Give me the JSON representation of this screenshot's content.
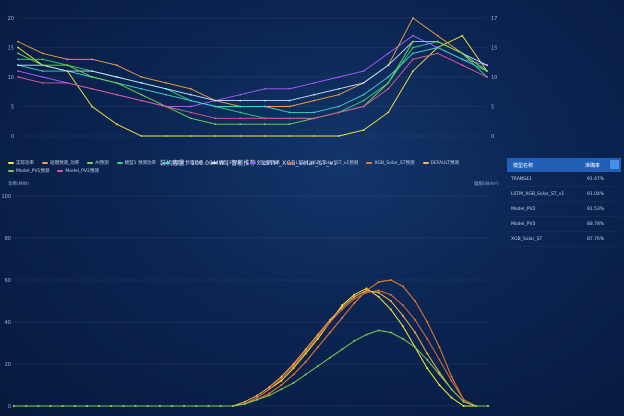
{
  "subtitle": "装机容量：100.00MW  |  智能推荐：LSTM_XGB_Solar_ST_v1",
  "units": {
    "left": "功率(MW)",
    "right": "辐照(W/m²)"
  },
  "legend": [
    {
      "label": "实际功率",
      "color": "#f5e83a"
    },
    {
      "label": "短期预测_功率",
      "color": "#f2a23c"
    },
    {
      "label": "AI预测",
      "color": "#7bd94a"
    },
    {
      "label": "模型1 预测功率",
      "color": "#35d07a"
    },
    {
      "label": "模型2 预测功率",
      "color": "#3bd4c8"
    },
    {
      "label": "模型3 预测",
      "color": "#c3e3ff"
    },
    {
      "label": "超短期功率",
      "color": "#a35cff"
    },
    {
      "label": "LSTM_XGB_Solar_ST_v1预测",
      "color": "#e06a3a"
    },
    {
      "label": "XGB_Solar_ST预测",
      "color": "#ef7b2a"
    },
    {
      "label": "DEFAULT预测",
      "color": "#ffb347"
    },
    {
      "label": "Model_PV1预测",
      "color": "#7ec850"
    },
    {
      "label": "Model_PV2预测",
      "color": "#e05a9a"
    }
  ],
  "panel": {
    "headers": [
      "模型名称",
      "准确率"
    ],
    "rows": [
      {
        "name": "TRANS41",
        "acc": "91.47%"
      },
      {
        "name": "LSTM_XGB_Solar_ST_v1",
        "acc": "91.04%"
      },
      {
        "name": "Model_PV2",
        "acc": "91.53%"
      },
      {
        "name": "Model_PV3",
        "acc": "88.78%"
      },
      {
        "name": "XGB_Solar_ST",
        "acc": "87.76%"
      }
    ]
  },
  "chart_data": [
    {
      "type": "line",
      "ylim_left": [
        0,
        20
      ],
      "ylim_right": [
        0,
        17
      ],
      "y_ticks_left": [
        "0",
        "5",
        "10",
        "15",
        "20"
      ],
      "y_ticks_right": [
        "0",
        "5",
        "10",
        "15",
        "17"
      ],
      "x_count": 20,
      "series": [
        {
          "color": "#f5e83a",
          "values": [
            15,
            12,
            11,
            5,
            2,
            0,
            0,
            0,
            0,
            0,
            0,
            0,
            0,
            0,
            1,
            4,
            11,
            15,
            17,
            11
          ]
        },
        {
          "color": "#a35cff",
          "values": [
            11,
            10,
            9,
            8,
            7,
            6,
            5,
            5,
            6,
            7,
            8,
            8,
            9,
            10,
            11,
            14,
            17,
            15,
            13,
            12
          ]
        },
        {
          "color": "#f2a23c",
          "values": [
            16,
            14,
            13,
            13,
            12,
            10,
            9,
            8,
            6,
            5,
            5,
            5,
            6,
            7,
            9,
            12,
            20,
            17,
            14,
            11
          ]
        },
        {
          "color": "#35d07a",
          "values": [
            13,
            13,
            12,
            11,
            10,
            9,
            8,
            6,
            5,
            4,
            3,
            3,
            3,
            4,
            6,
            9,
            15,
            16,
            14,
            10
          ]
        },
        {
          "color": "#3bd4c8",
          "values": [
            12,
            11,
            11,
            10,
            9,
            8,
            7,
            6,
            5,
            5,
            5,
            4,
            4,
            5,
            7,
            10,
            14,
            15,
            13,
            11
          ]
        },
        {
          "color": "#c3e3ff",
          "values": [
            12,
            12,
            11,
            11,
            10,
            9,
            8,
            7,
            6,
            6,
            6,
            6,
            7,
            8,
            9,
            12,
            16,
            16,
            14,
            12
          ]
        },
        {
          "color": "#7bd94a",
          "values": [
            14,
            12,
            12,
            10,
            9,
            7,
            5,
            3,
            2,
            2,
            2,
            2,
            3,
            4,
            5,
            9,
            16,
            16,
            14,
            11
          ]
        },
        {
          "color": "#e05a9a",
          "values": [
            10,
            9,
            9,
            8,
            7,
            6,
            5,
            4,
            3,
            3,
            3,
            3,
            3,
            4,
            5,
            8,
            13,
            14,
            12,
            10
          ]
        }
      ]
    },
    {
      "type": "line",
      "ylim": [
        0,
        100
      ],
      "y_ticks": [
        "0",
        "20",
        "40",
        "60",
        "80",
        "100"
      ],
      "x_count": 40,
      "series": [
        {
          "color": "#f5e83a",
          "values": [
            0,
            0,
            0,
            0,
            0,
            0,
            0,
            0,
            0,
            0,
            0,
            0,
            0,
            0,
            0,
            0,
            0,
            0,
            0,
            1,
            4,
            8,
            12,
            18,
            25,
            32,
            40,
            48,
            53,
            56,
            52,
            46,
            38,
            28,
            18,
            10,
            4,
            0,
            0,
            0
          ]
        },
        {
          "color": "#ef7b2a",
          "values": [
            0,
            0,
            0,
            0,
            0,
            0,
            0,
            0,
            0,
            0,
            0,
            0,
            0,
            0,
            0,
            0,
            0,
            0,
            0,
            1,
            3,
            6,
            10,
            15,
            21,
            28,
            35,
            42,
            49,
            55,
            59,
            60,
            57,
            50,
            40,
            28,
            14,
            3,
            0,
            0
          ]
        },
        {
          "color": "#e06a3a",
          "values": [
            0,
            0,
            0,
            0,
            0,
            0,
            0,
            0,
            0,
            0,
            0,
            0,
            0,
            0,
            0,
            0,
            0,
            0,
            0,
            1,
            4,
            8,
            13,
            19,
            26,
            33,
            40,
            46,
            51,
            54,
            55,
            53,
            48,
            41,
            32,
            22,
            12,
            3,
            0,
            0
          ]
        },
        {
          "color": "#ffb347",
          "values": [
            0,
            0,
            0,
            0,
            0,
            0,
            0,
            0,
            0,
            0,
            0,
            0,
            0,
            0,
            0,
            0,
            0,
            0,
            0,
            2,
            5,
            9,
            14,
            20,
            27,
            34,
            41,
            47,
            52,
            55,
            54,
            50,
            43,
            35,
            25,
            16,
            8,
            2,
            0,
            0
          ]
        },
        {
          "color": "#7ec850",
          "values": [
            0,
            0,
            0,
            0,
            0,
            0,
            0,
            0,
            0,
            0,
            0,
            0,
            0,
            0,
            0,
            0,
            0,
            0,
            0,
            1,
            3,
            5,
            8,
            11,
            15,
            19,
            23,
            27,
            31,
            34,
            36,
            35,
            32,
            28,
            22,
            15,
            8,
            2,
            0,
            0
          ]
        }
      ]
    }
  ]
}
